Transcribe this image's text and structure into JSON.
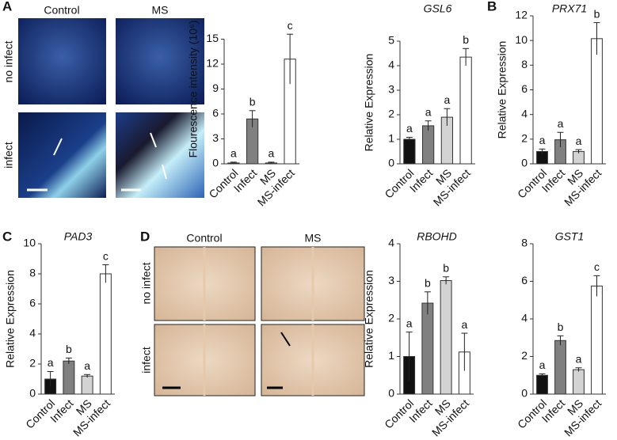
{
  "panels": [
    {
      "letter": "A",
      "columns": [
        "Control",
        "MS"
      ],
      "rows": [
        "no infect",
        "infect"
      ]
    },
    {
      "letter": "B"
    },
    {
      "letter": "C"
    },
    {
      "letter": "D",
      "columns": [
        "Control",
        "MS"
      ],
      "rows": [
        "no infect",
        "infect"
      ]
    }
  ],
  "chart_data": [
    {
      "type": "bar",
      "y_label": "Flourescence intensity (10⁶)",
      "categories": [
        "Control",
        "Infect",
        "MS",
        "MS-infect"
      ],
      "values": [
        0.1,
        5.4,
        0.1,
        12.6
      ],
      "errors": [
        0.1,
        1.0,
        0.1,
        3.0
      ],
      "annotations": [
        "a",
        "b",
        "a",
        "c"
      ],
      "colors": [
        "#111111",
        "#808080",
        "#d3d3d3",
        "#ffffff"
      ],
      "ylim": [
        0,
        18
      ],
      "yticks": [
        0,
        3,
        6,
        9,
        12,
        15
      ]
    },
    {
      "type": "bar",
      "title": "GSL6",
      "y_label": "Relative Expression",
      "categories": [
        "Control",
        "Infect",
        "MS",
        "MS-infect"
      ],
      "values": [
        1.0,
        1.55,
        1.9,
        4.35
      ],
      "errors": [
        0.08,
        0.2,
        0.35,
        0.35
      ],
      "annotations": [
        "a",
        "a",
        "a",
        "b"
      ],
      "colors": [
        "#111111",
        "#808080",
        "#d3d3d3",
        "#ffffff"
      ],
      "ylim": [
        0,
        5
      ],
      "yticks": [
        0,
        1,
        2,
        3,
        4,
        5
      ]
    },
    {
      "type": "bar",
      "title": "PRX71",
      "y_label": "Relative Expression",
      "categories": [
        "Control",
        "Infect",
        "MS",
        "MS-infect"
      ],
      "values": [
        1.0,
        1.95,
        1.0,
        10.15
      ],
      "errors": [
        0.2,
        0.6,
        0.15,
        1.3
      ],
      "annotations": [
        "a",
        "a",
        "a",
        "b"
      ],
      "colors": [
        "#111111",
        "#808080",
        "#d3d3d3",
        "#ffffff"
      ],
      "ylim": [
        0,
        12
      ],
      "yticks": [
        0,
        2,
        4,
        6,
        8,
        10,
        12
      ]
    },
    {
      "type": "bar",
      "title": "PAD3",
      "y_label": "Relative Expression",
      "categories": [
        "Control",
        "Infect",
        "MS",
        "MS-infect"
      ],
      "values": [
        1.0,
        2.2,
        1.2,
        8.0
      ],
      "errors": [
        0.5,
        0.2,
        0.1,
        0.6
      ],
      "annotations": [
        "a",
        "b",
        "a",
        "c"
      ],
      "colors": [
        "#111111",
        "#808080",
        "#d3d3d3",
        "#ffffff"
      ],
      "ylim": [
        0,
        10
      ],
      "yticks": [
        0,
        2,
        4,
        6,
        8,
        10
      ]
    },
    {
      "type": "bar",
      "title": "RBOHD",
      "y_label": "Relative Expression",
      "categories": [
        "Control",
        "Infect",
        "MS",
        "MS-infect"
      ],
      "values": [
        1.0,
        2.42,
        3.02,
        1.12
      ],
      "errors": [
        0.65,
        0.3,
        0.1,
        0.5
      ],
      "annotations": [
        "a",
        "b",
        "b",
        "a"
      ],
      "colors": [
        "#111111",
        "#808080",
        "#d3d3d3",
        "#ffffff"
      ],
      "ylim": [
        0,
        4
      ],
      "yticks": [
        0,
        1,
        2,
        3,
        4
      ]
    },
    {
      "type": "bar",
      "title": "GST1",
      "categories": [
        "Control",
        "Infect",
        "MS",
        "MS-infect"
      ],
      "values": [
        1.0,
        2.85,
        1.3,
        5.75
      ],
      "errors": [
        0.08,
        0.25,
        0.1,
        0.55
      ],
      "annotations": [
        "a",
        "b",
        "a",
        "c"
      ],
      "colors": [
        "#111111",
        "#808080",
        "#d3d3d3",
        "#ffffff"
      ],
      "ylim": [
        0,
        8
      ],
      "yticks": [
        0,
        2,
        4,
        6,
        8
      ]
    }
  ]
}
